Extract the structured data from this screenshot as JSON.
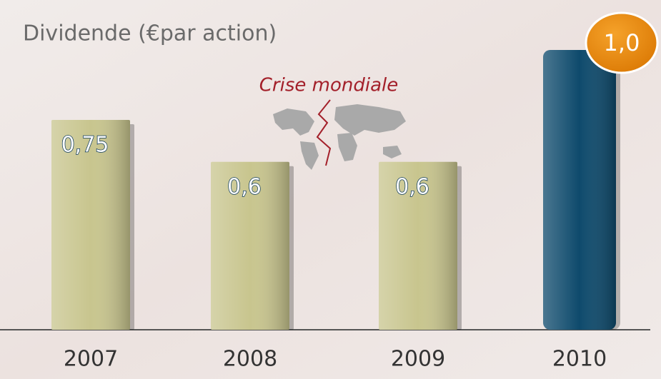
{
  "chart_data": {
    "type": "bar",
    "title": "Dividende (€par action)",
    "annotation": "Crise mondiale",
    "categories": [
      "2007",
      "2008",
      "2009",
      "2010"
    ],
    "values": [
      0.75,
      0.6,
      0.6,
      1.0
    ],
    "value_labels": [
      "0,75",
      "0,6",
      "0,6",
      "1,0"
    ],
    "colors": [
      "#c8c58e",
      "#c8c58e",
      "#c8c58e",
      "#0e4a6c"
    ]
  }
}
